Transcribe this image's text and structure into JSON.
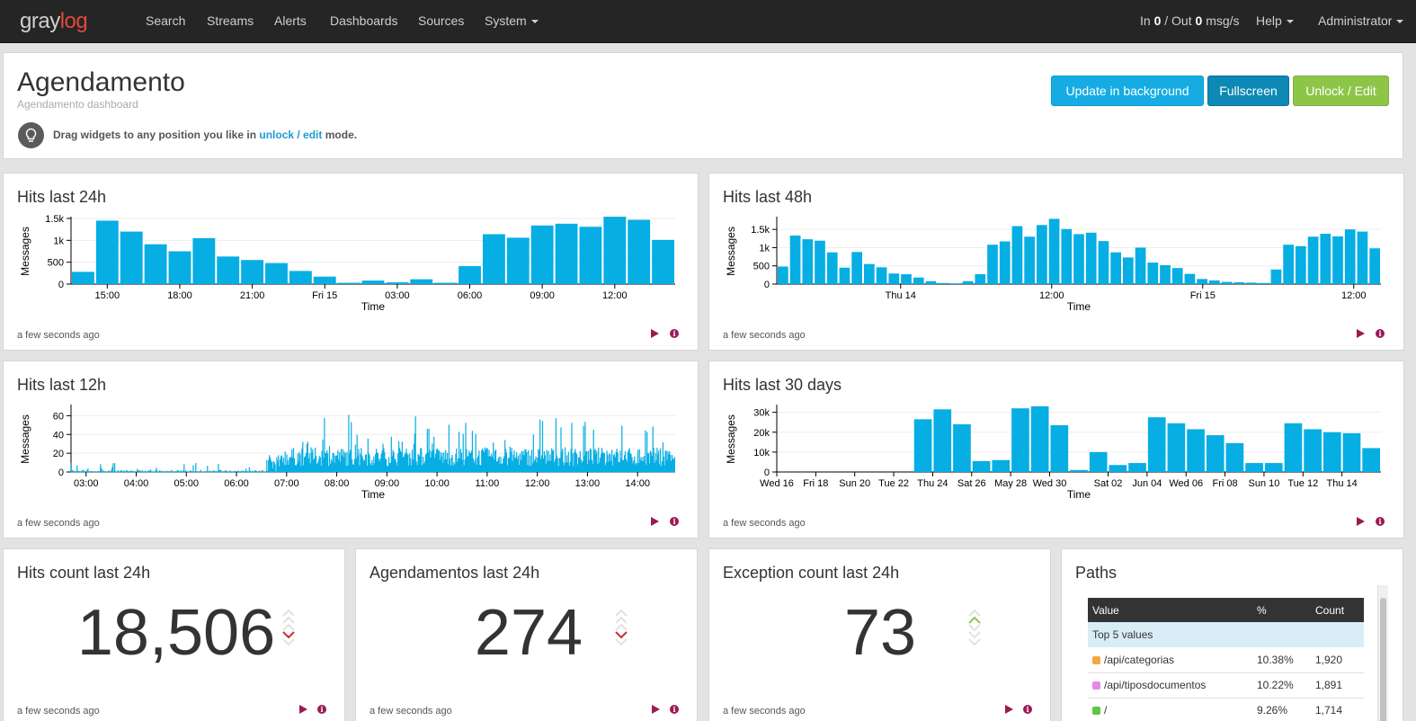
{
  "nav": {
    "logo_gray": "gray",
    "logo_log": "log",
    "items": [
      "Search",
      "Streams",
      "Alerts",
      "Dashboards",
      "Sources",
      "System"
    ],
    "throughput": {
      "in_label": "In",
      "in_value": "0",
      "out_label": "/ Out",
      "out_value": "0",
      "unit": "msg/s"
    },
    "help": "Help",
    "user": "Administrator"
  },
  "header": {
    "title": "Agendamento",
    "subtitle": "Agendamento dashboard",
    "tip_prefix": "Drag widgets to any position you like in",
    "tip_link": "unlock / edit",
    "tip_suffix": "mode.",
    "buttons": {
      "update": "Update in background",
      "fullscreen": "Fullscreen",
      "unlock": "Unlock / Edit"
    }
  },
  "widgets": {
    "hits24": {
      "title": "Hits last 24h",
      "footer": "a few seconds ago"
    },
    "hits48": {
      "title": "Hits last 48h",
      "footer": "a few seconds ago"
    },
    "hits12": {
      "title": "Hits last 12h",
      "footer": "a few seconds ago"
    },
    "hits30": {
      "title": "Hits last 30 days",
      "footer": "a few seconds ago"
    },
    "count": {
      "title": "Hits count last 24h",
      "value": "18,506",
      "trend": "down",
      "footer": "a few seconds ago"
    },
    "agend": {
      "title": "Agendamentos last 24h",
      "value": "274",
      "trend": "down",
      "footer": "a few seconds ago"
    },
    "exc": {
      "title": "Exception count last 24h",
      "value": "73",
      "trend": "up",
      "footer": "a few seconds ago"
    },
    "paths": {
      "title": "Paths",
      "columns": [
        "Value",
        "%",
        "Count"
      ],
      "group_label": "Top 5 values",
      "rows": [
        {
          "value": "/api/categorias",
          "pct": "10.38%",
          "count": "1,920",
          "color": "#f4a742"
        },
        {
          "value": "/api/tiposdocumentos",
          "pct": "10.22%",
          "count": "1,891",
          "color": "#e589e8"
        },
        {
          "value": "/",
          "pct": "9.26%",
          "count": "1,714",
          "color": "#5cc646"
        }
      ]
    }
  },
  "colors": {
    "bar": "#07aee3",
    "accent": "#9a1a54",
    "trend_down": "#c9302c",
    "trend_up": "#8dc549"
  },
  "chart_data": [
    {
      "id": "hits24",
      "type": "bar",
      "title": "Hits last 24h",
      "xlabel": "Time",
      "ylabel": "Messages",
      "ylim": [
        0,
        1500
      ],
      "yticks": [
        0,
        500,
        1000,
        1500
      ],
      "ytick_labels": [
        "0",
        "500",
        "1k",
        "1.5k"
      ],
      "xtick_labels": [
        "15:00",
        "18:00",
        "21:00",
        "Fri 15",
        "03:00",
        "06:00",
        "09:00",
        "12:00"
      ],
      "values": [
        280,
        1450,
        1200,
        910,
        750,
        1050,
        630,
        550,
        480,
        300,
        170,
        30,
        80,
        40,
        110,
        30,
        410,
        1140,
        1060,
        1340,
        1380,
        1310,
        1540,
        1470,
        1010
      ]
    },
    {
      "id": "hits48",
      "type": "bar",
      "title": "Hits last 48h",
      "xlabel": "Time",
      "ylabel": "Messages",
      "ylim": [
        0,
        1800
      ],
      "yticks": [
        0,
        500,
        1000,
        1500
      ],
      "ytick_labels": [
        "0",
        "500",
        "1k",
        "1.5k"
      ],
      "xtick_labels": [
        "Thu 14",
        "12:00",
        "Fri 15",
        "12:00"
      ],
      "values": [
        480,
        1330,
        1230,
        1190,
        870,
        450,
        880,
        550,
        460,
        290,
        270,
        180,
        80,
        30,
        20,
        80,
        270,
        1080,
        1170,
        1590,
        1300,
        1620,
        1790,
        1510,
        1370,
        1410,
        1180,
        870,
        730,
        1000,
        590,
        520,
        440,
        280,
        140,
        100,
        60,
        50,
        40,
        30,
        400,
        1080,
        1040,
        1300,
        1380,
        1310,
        1500,
        1440,
        980
      ]
    },
    {
      "id": "hits12",
      "type": "bar",
      "title": "Hits last 12h",
      "xlabel": "Time",
      "ylabel": "Messages",
      "ylim": [
        0,
        70
      ],
      "yticks": [
        0,
        20,
        40,
        60
      ],
      "ytick_labels": [
        "0",
        "20",
        "40",
        "60"
      ],
      "xtick_labels": [
        "03:00",
        "04:00",
        "05:00",
        "06:00",
        "07:00",
        "08:00",
        "09:00",
        "10:00",
        "11:00",
        "12:00",
        "13:00",
        "14:00"
      ],
      "x_start_hour": 2.7,
      "x_end_hour": 14.75,
      "samples_per_hour": 60
    },
    {
      "id": "hits30",
      "type": "bar",
      "title": "Hits last 30 days",
      "xlabel": "Time",
      "ylabel": "Messages",
      "ylim": [
        0,
        33000
      ],
      "yticks": [
        0,
        10000,
        20000,
        30000
      ],
      "ytick_labels": [
        "0",
        "10k",
        "20k",
        "30k"
      ],
      "xtick_labels": [
        "Wed 16",
        "Fri 18",
        "Sun 20",
        "Tue 22",
        "Thu 24",
        "Sat 26",
        "May 28",
        "Wed 30",
        "Sat 02",
        "Jun 04",
        "Wed 06",
        "Fri 08",
        "Sun 10",
        "Tue 12",
        "Thu 14"
      ],
      "values": [
        0,
        0,
        0,
        0,
        0,
        0,
        0,
        26500,
        31500,
        24000,
        5500,
        6000,
        32000,
        33000,
        23500,
        1000,
        10000,
        3500,
        4500,
        27500,
        24500,
        21500,
        18500,
        14500,
        4500,
        4500,
        24500,
        21500,
        20000,
        19500,
        12000
      ]
    }
  ]
}
